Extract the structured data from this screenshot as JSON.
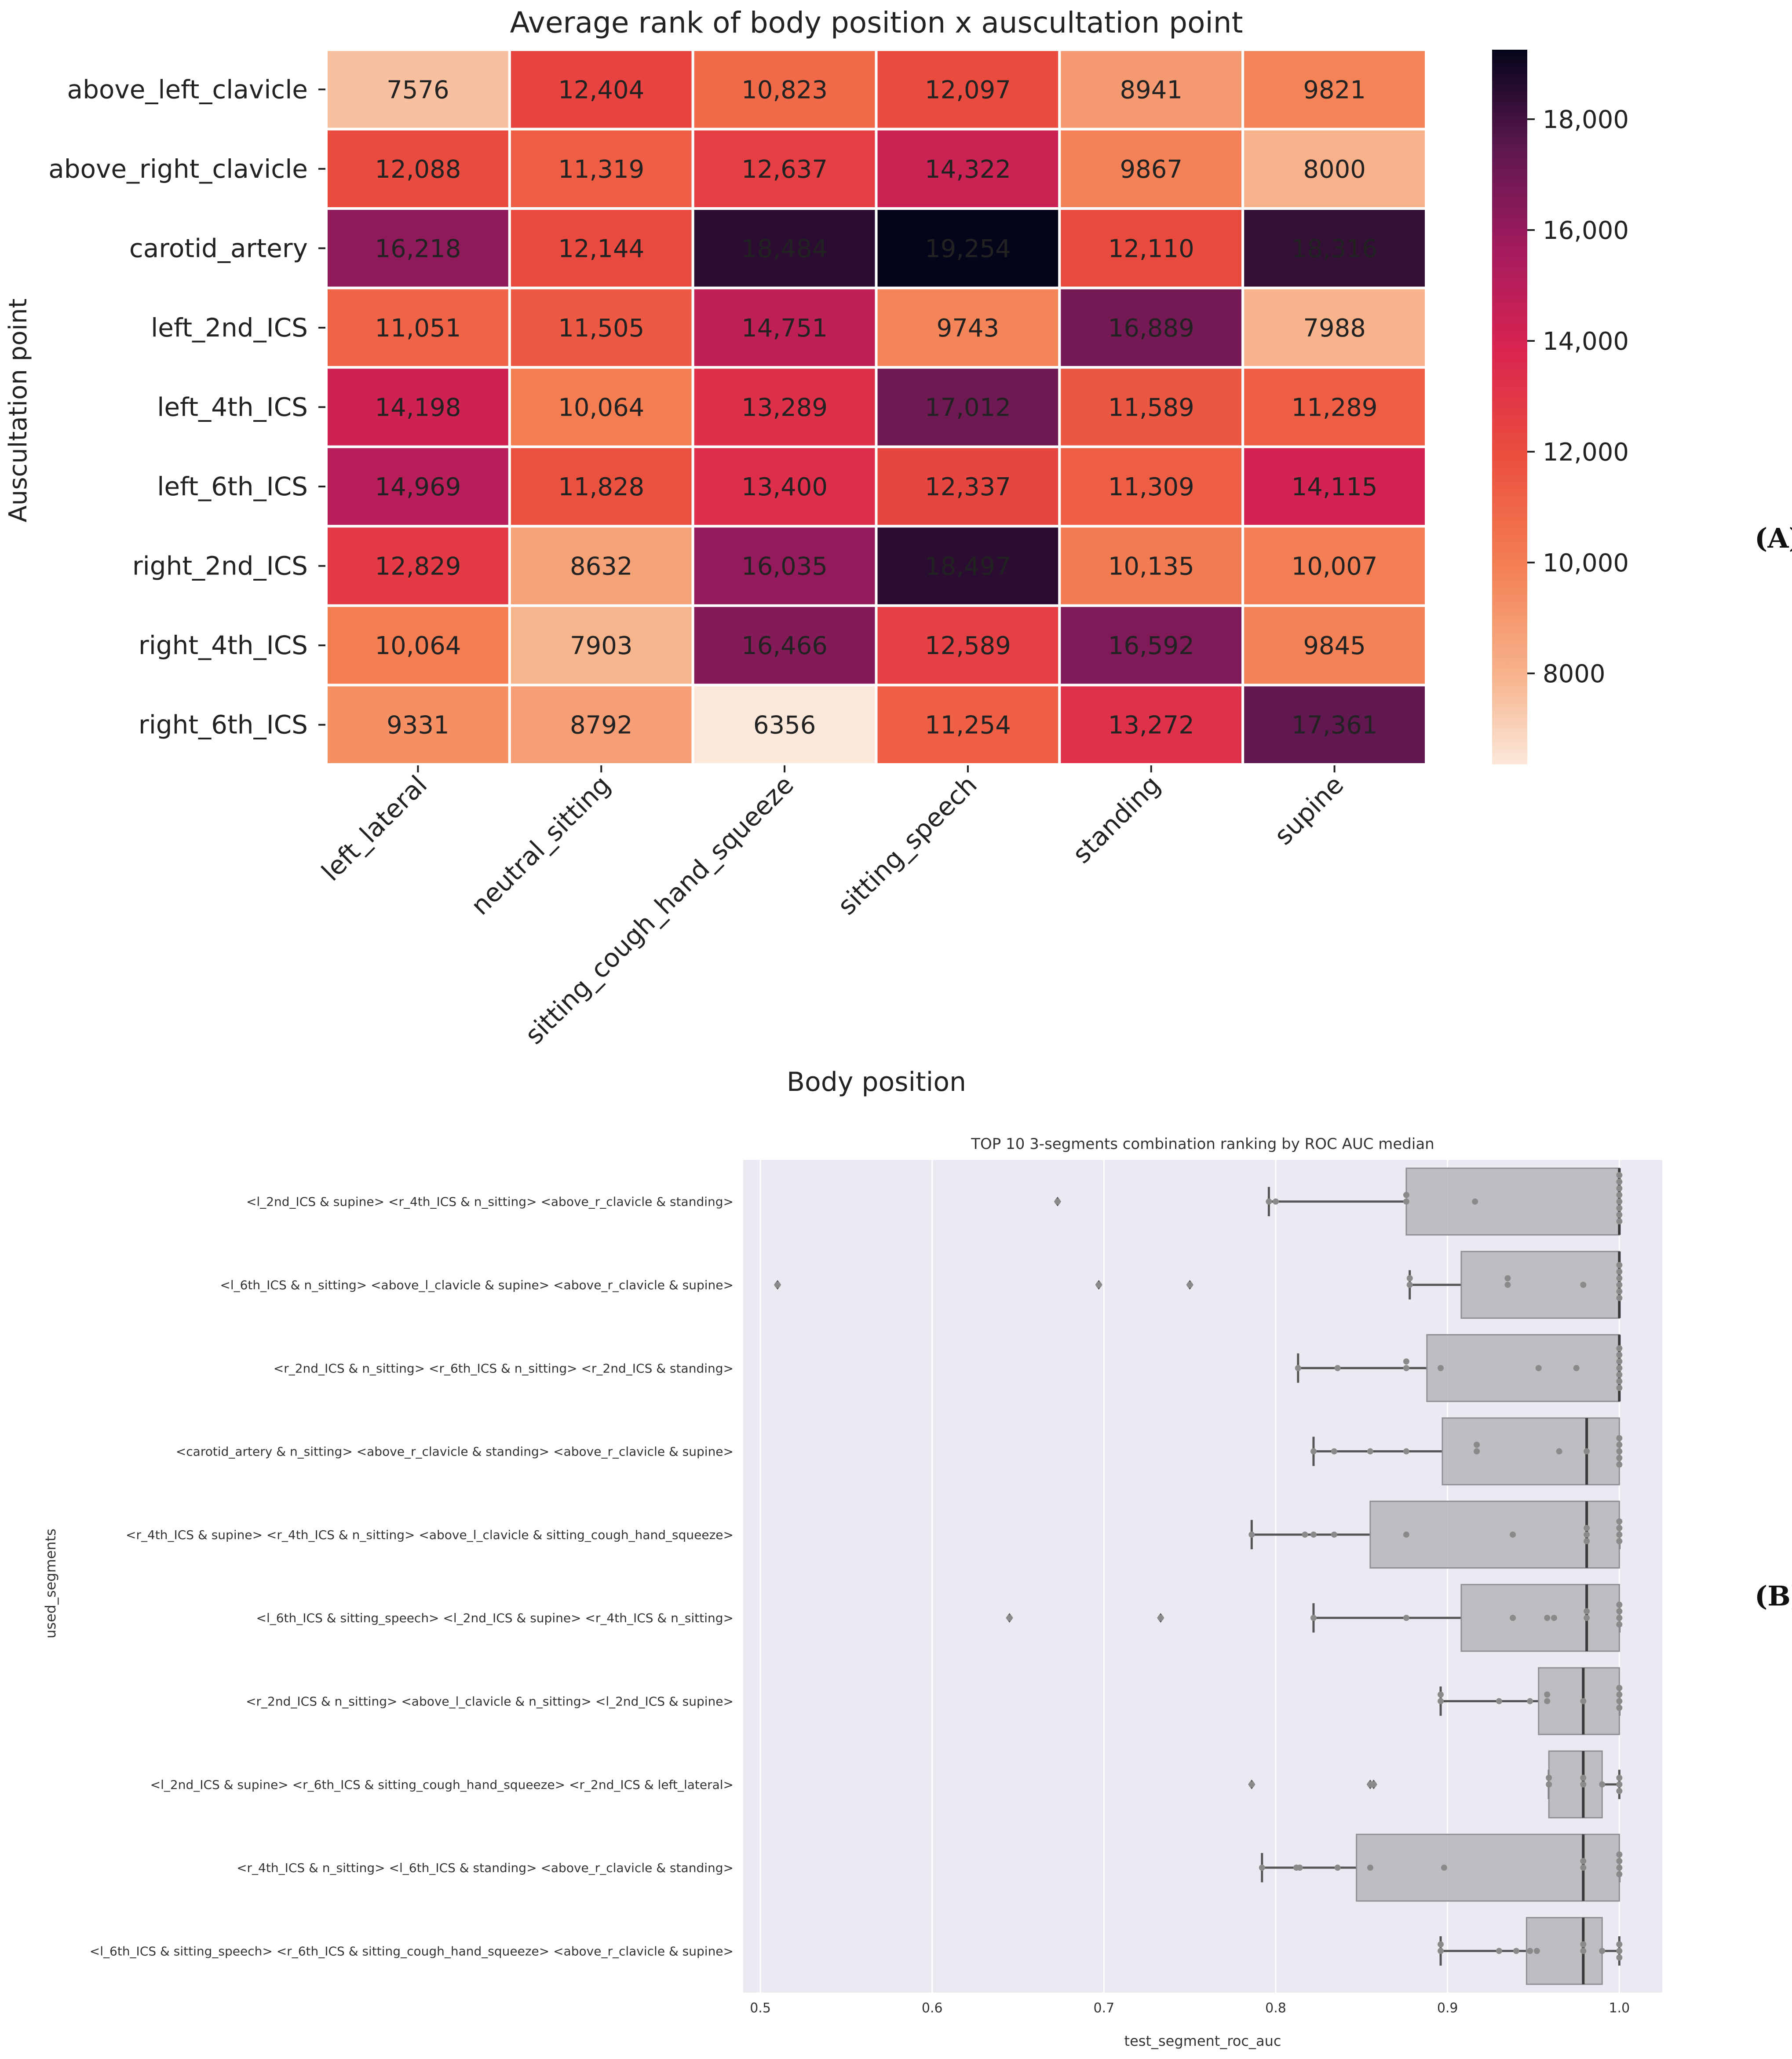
{
  "panel_labels": {
    "a": "(A)",
    "b": "(B)"
  },
  "chart_data": [
    {
      "type": "heatmap",
      "title": "Average rank of body position x auscultation point",
      "xlabel": "Body position",
      "ylabel": "Auscultation point",
      "columns": [
        "left_lateral",
        "neutral_sitting",
        "sitting_cough_hand_squeeze",
        "sitting_speech",
        "standing",
        "supine"
      ],
      "rows": [
        "above_left_clavicle",
        "above_right_clavicle",
        "carotid_artery",
        "left_2nd_ICS",
        "left_4th_ICS",
        "left_6th_ICS",
        "right_2nd_ICS",
        "right_4th_ICS",
        "right_6th_ICS"
      ],
      "values": [
        [
          7576,
          12404,
          10823,
          12097,
          8941,
          9821
        ],
        [
          12088,
          11319,
          12637,
          14322,
          9867,
          8000
        ],
        [
          16218,
          12144,
          18484,
          19254,
          12110,
          18316
        ],
        [
          11051,
          11505,
          14751,
          9743,
          16889,
          7988
        ],
        [
          14198,
          10064,
          13289,
          17012,
          11589,
          11289
        ],
        [
          14969,
          11828,
          13400,
          12337,
          11309,
          14115
        ],
        [
          12829,
          8632,
          16035,
          18497,
          10135,
          10007
        ],
        [
          10064,
          7903,
          16466,
          12589,
          16592,
          9845
        ],
        [
          9331,
          8792,
          6356,
          11254,
          13272,
          17361
        ]
      ],
      "colorbar": {
        "min": 6356,
        "max": 19254,
        "ticks": [
          8000,
          10000,
          12000,
          14000,
          16000,
          18000
        ],
        "tick_labels": [
          "8000",
          "10,000",
          "12,000",
          "14,000",
          "16,000",
          "18,000"
        ]
      }
    },
    {
      "type": "box",
      "title": "TOP 10 3-segments combination ranking by ROC AUC median",
      "xlabel": "test_segment_roc_auc",
      "ylabel": "used_segments",
      "xlim": [
        0.49,
        1.025
      ],
      "xticks": [
        0.5,
        0.6,
        0.7,
        0.8,
        0.9,
        1.0
      ],
      "xtick_labels": [
        "0.5",
        "0.6",
        "0.7",
        "0.8",
        "0.9",
        "1.0"
      ],
      "categories": [
        "<l_2nd_ICS & supine> <r_4th_ICS & n_sitting> <above_r_clavicle & standing>",
        "<l_6th_ICS & n_sitting> <above_l_clavicle & supine> <above_r_clavicle & supine>",
        "<r_2nd_ICS & n_sitting> <r_6th_ICS & n_sitting> <r_2nd_ICS & standing>",
        "<carotid_artery & n_sitting> <above_r_clavicle & standing> <above_r_clavicle & supine>",
        "<r_4th_ICS & supine> <r_4th_ICS & n_sitting> <above_l_clavicle & sitting_cough_hand_squeeze>",
        "<l_6th_ICS & sitting_speech> <l_2nd_ICS & supine> <r_4th_ICS & n_sitting>",
        "<r_2nd_ICS & n_sitting> <above_l_clavicle & n_sitting> <l_2nd_ICS & supine>",
        "<l_2nd_ICS & supine> <r_6th_ICS & sitting_cough_hand_squeeze> <r_2nd_ICS & left_lateral>",
        "<r_4th_ICS & n_sitting> <l_6th_ICS & standing> <above_r_clavicle & standing>",
        "<l_6th_ICS & sitting_speech> <r_6th_ICS & sitting_cough_hand_squeeze> <above_r_clavicle & supine>"
      ],
      "boxes": [
        {
          "whisker_low": 0.796,
          "q1": 0.876,
          "median": 1.0,
          "q3": 1.0,
          "whisker_high": 1.0,
          "outliers": [
            0.673
          ]
        },
        {
          "whisker_low": 0.878,
          "q1": 0.908,
          "median": 1.0,
          "q3": 1.0,
          "whisker_high": 1.0,
          "outliers": [
            0.51,
            0.697,
            0.75
          ]
        },
        {
          "whisker_low": 0.813,
          "q1": 0.888,
          "median": 1.0,
          "q3": 1.0,
          "whisker_high": 1.0,
          "outliers": []
        },
        {
          "whisker_low": 0.822,
          "q1": 0.897,
          "median": 0.981,
          "q3": 1.0,
          "whisker_high": 1.0,
          "outliers": []
        },
        {
          "whisker_low": 0.786,
          "q1": 0.855,
          "median": 0.981,
          "q3": 1.0,
          "whisker_high": 1.0,
          "outliers": []
        },
        {
          "whisker_low": 0.822,
          "q1": 0.908,
          "median": 0.981,
          "q3": 1.0,
          "whisker_high": 1.0,
          "outliers": [
            0.645,
            0.733
          ]
        },
        {
          "whisker_low": 0.896,
          "q1": 0.953,
          "median": 0.979,
          "q3": 1.0,
          "whisker_high": 1.0,
          "outliers": []
        },
        {
          "whisker_low": 0.959,
          "q1": 0.959,
          "median": 0.979,
          "q3": 0.99,
          "whisker_high": 1.0,
          "outliers": [
            0.786,
            0.855,
            0.857
          ]
        },
        {
          "whisker_low": 0.792,
          "q1": 0.847,
          "median": 0.979,
          "q3": 1.0,
          "whisker_high": 1.0,
          "outliers": []
        },
        {
          "whisker_low": 0.896,
          "q1": 0.946,
          "median": 0.979,
          "q3": 0.99,
          "whisker_high": 1.0,
          "outliers": []
        }
      ],
      "points": [
        [
          0.673,
          0.796,
          0.8,
          0.876,
          0.876,
          0.916,
          1.0,
          1.0,
          1.0,
          1.0,
          1.0,
          1.0,
          1.0,
          1.0
        ],
        [
          0.51,
          0.697,
          0.75,
          0.878,
          0.878,
          0.935,
          0.935,
          0.979,
          1.0,
          1.0,
          1.0,
          1.0,
          1.0,
          1.0
        ],
        [
          0.813,
          0.836,
          0.876,
          0.876,
          0.896,
          0.953,
          0.975,
          1.0,
          1.0,
          1.0,
          1.0,
          1.0,
          1.0,
          1.0
        ],
        [
          0.822,
          0.834,
          0.855,
          0.876,
          0.917,
          0.917,
          0.965,
          0.981,
          1.0,
          1.0,
          1.0,
          1.0,
          1.0
        ],
        [
          0.786,
          0.817,
          0.822,
          0.834,
          0.876,
          0.938,
          0.981,
          0.981,
          0.981,
          1.0,
          1.0,
          1.0,
          1.0
        ],
        [
          0.645,
          0.733,
          0.822,
          0.876,
          0.938,
          0.958,
          0.962,
          0.981,
          0.981,
          1.0,
          1.0,
          1.0,
          1.0
        ],
        [
          0.896,
          0.896,
          0.93,
          0.948,
          0.958,
          0.958,
          0.979,
          1.0,
          1.0,
          1.0,
          1.0
        ],
        [
          0.786,
          0.855,
          0.857,
          0.959,
          0.959,
          0.979,
          0.979,
          0.99,
          1.0,
          1.0,
          1.0
        ],
        [
          0.792,
          0.812,
          0.814,
          0.836,
          0.855,
          0.898,
          0.979,
          0.979,
          1.0,
          1.0,
          1.0,
          1.0
        ],
        [
          0.896,
          0.896,
          0.93,
          0.94,
          0.948,
          0.952,
          0.979,
          0.979,
          0.99,
          1.0,
          1.0,
          1.0
        ]
      ]
    }
  ]
}
